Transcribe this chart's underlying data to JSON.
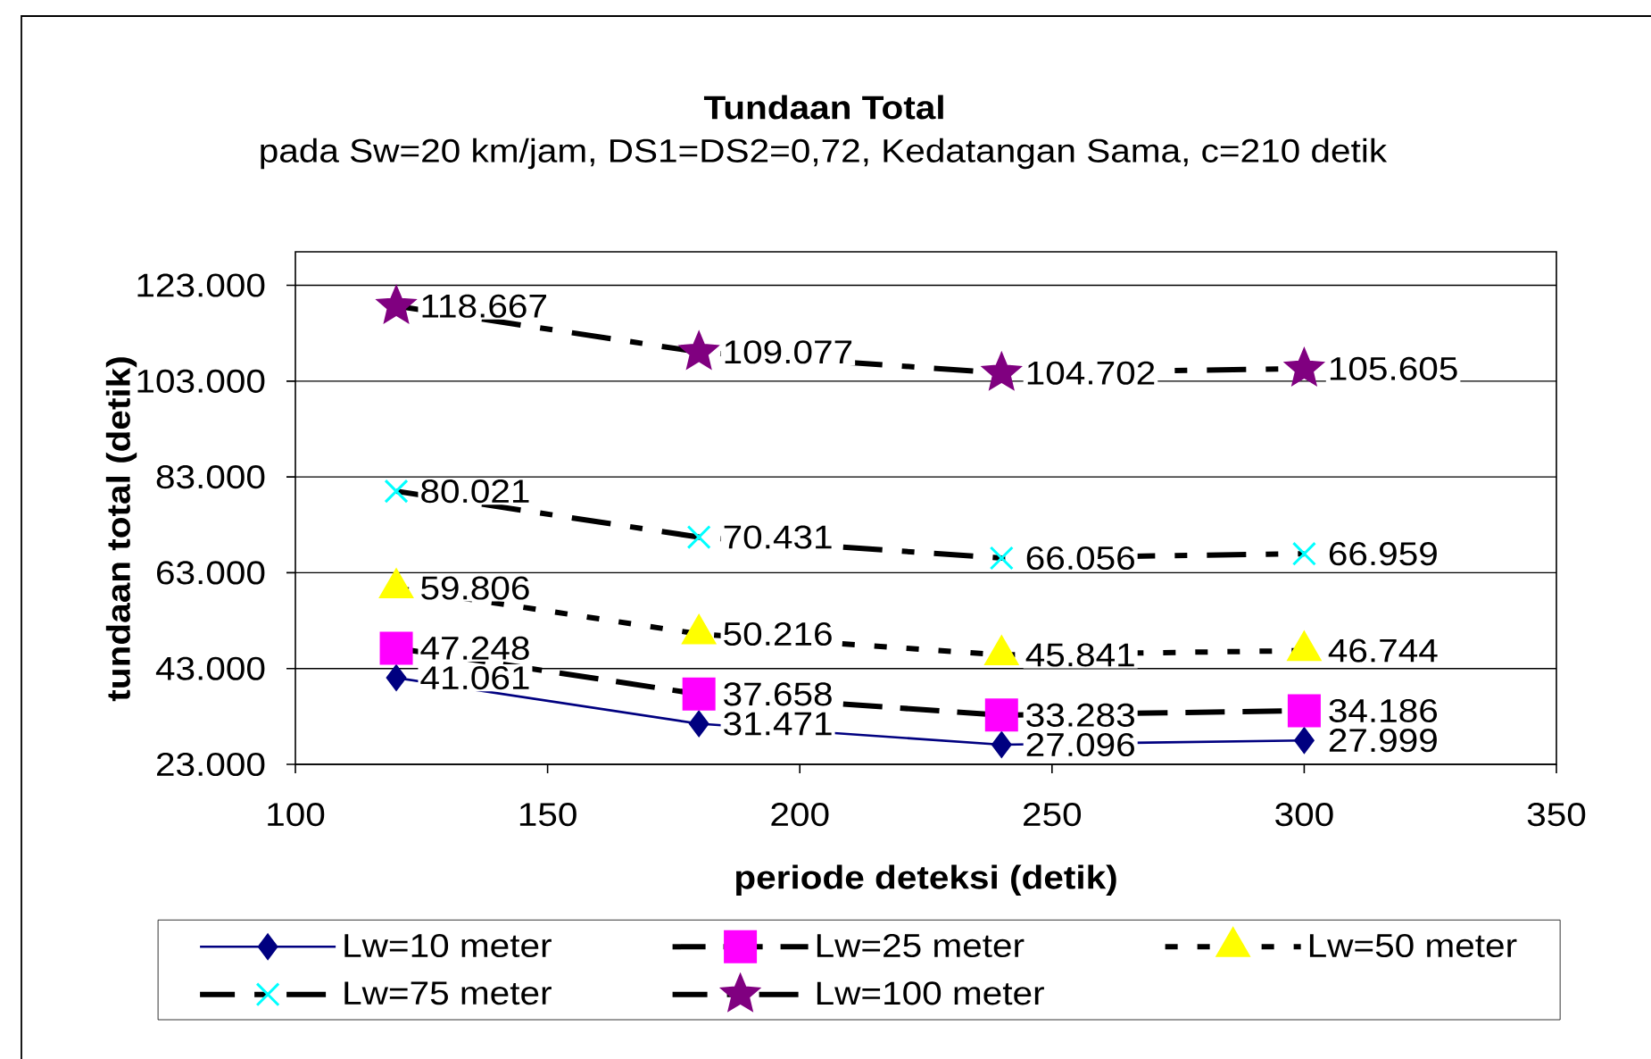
{
  "chart_data": {
    "type": "line",
    "title": "Tundaan Total",
    "subtitle": "pada Sw=20 km/jam, DS1=DS2=0,72, Kedatangan Sama, c=210 detik",
    "xlabel": "periode deteksi (detik)",
    "ylabel": "tundaan total (detik)",
    "x": [
      120,
      180,
      240,
      300
    ],
    "series": [
      {
        "name": "Lw=10 meter",
        "color": "#000080",
        "marker": "diamond",
        "line_style": "solid",
        "values": [
          41061,
          31471,
          27096,
          27999
        ],
        "value_labels": [
          "41.061",
          "31.471",
          "27.096",
          "27.999"
        ]
      },
      {
        "name": "Lw=25 meter",
        "color": "#ff00ff",
        "marker": "square",
        "line_style": "dashed",
        "values": [
          47248,
          37658,
          33283,
          34186
        ],
        "value_labels": [
          "47.248",
          "37.658",
          "33.283",
          "34.186"
        ]
      },
      {
        "name": "Lw=50 meter",
        "color": "#ffff00",
        "marker": "triangle",
        "line_style": "dotted",
        "values": [
          59806,
          50216,
          45841,
          46744
        ],
        "value_labels": [
          "59.806",
          "50.216",
          "45.841",
          "46.744"
        ]
      },
      {
        "name": "Lw=75 meter",
        "color": "#00ffff",
        "marker": "cross",
        "line_style": "dashdot",
        "values": [
          80021,
          70431,
          66056,
          66959
        ],
        "value_labels": [
          "80.021",
          "70.431",
          "66.056",
          "66.959"
        ]
      },
      {
        "name": "Lw=100 meter",
        "color": "#800080",
        "marker": "star",
        "line_style": "dashdot",
        "values": [
          118667,
          109077,
          104702,
          105605
        ],
        "value_labels": [
          "118.667",
          "109.077",
          "104.702",
          "105.605"
        ]
      }
    ],
    "xlim": [
      100,
      350
    ],
    "xticks": [
      100,
      150,
      200,
      250,
      300,
      350
    ],
    "ylim": [
      23000,
      130000
    ],
    "yticks": [
      {
        "value": 23000,
        "label": "23.000"
      },
      {
        "value": 43000,
        "label": "43.000"
      },
      {
        "value": 63000,
        "label": "63.000"
      },
      {
        "value": 83000,
        "label": "83.000"
      },
      {
        "value": 103000,
        "label": "103.000"
      },
      {
        "value": 123000,
        "label": "123.000"
      }
    ],
    "grid": "y",
    "legend": "bottom"
  }
}
